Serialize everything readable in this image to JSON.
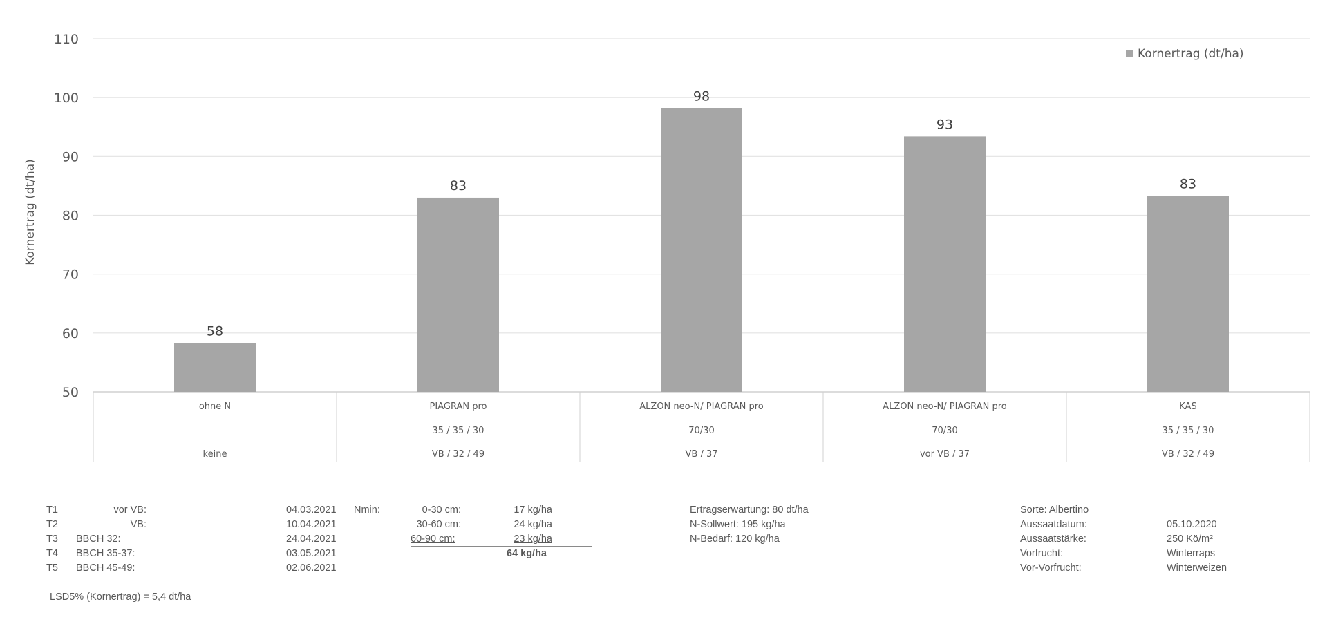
{
  "chart_data": {
    "type": "bar",
    "ylabel": "Kornertrag (dt/ha)",
    "ylim": [
      50,
      110
    ],
    "yticks": [
      50,
      60,
      70,
      80,
      90,
      100,
      110
    ],
    "grid": true,
    "legend": {
      "position": "top-right",
      "entries": [
        "Kornertrag (dt/ha)"
      ]
    },
    "series": [
      {
        "name": "Kornertrag (dt/ha)",
        "color": "#a6a6a6",
        "values": [
          58.3,
          83.0,
          98.2,
          93.4,
          83.3
        ],
        "labels": [
          "58",
          "83",
          "98",
          "93",
          "83"
        ]
      }
    ],
    "categories": [
      {
        "name": "ohne N",
        "split": "",
        "timing": "keine"
      },
      {
        "name": "PIAGRAN pro",
        "split": "35 / 35 / 30",
        "timing": "VB / 32 / 49"
      },
      {
        "name": "ALZON neo-N/ PIAGRAN pro",
        "split": "70/30",
        "timing": "VB / 37"
      },
      {
        "name": "ALZON neo-N/ PIAGRAN pro",
        "split": "70/30",
        "timing": "vor VB / 37"
      },
      {
        "name": "KAS",
        "split": "35 / 35 / 30",
        "timing": "VB / 32 / 49"
      }
    ]
  },
  "footer": {
    "timings": [
      {
        "id": "T1",
        "stage": "vor VB:",
        "date": "04.03.2021"
      },
      {
        "id": "T2",
        "stage": "VB:",
        "date": "10.04.2021"
      },
      {
        "id": "T3",
        "stage": "BBCH 32:",
        "date": "24.04.2021"
      },
      {
        "id": "T4",
        "stage": "BBCH 35-37:",
        "date": "03.05.2021"
      },
      {
        "id": "T5",
        "stage": "BBCH  45-49:",
        "date": "02.06.2021"
      }
    ],
    "nmin_label": "Nmin:",
    "nmin": [
      {
        "depth": "0-30 cm:",
        "value": "17 kg/ha"
      },
      {
        "depth": "30-60 cm:",
        "value": "24 kg/ha"
      },
      {
        "depth": "60-90 cm:",
        "value": "23 kg/ha"
      }
    ],
    "nmin_total": "64 kg/ha",
    "expectation": [
      "Ertragserwartung: 80 dt/ha",
      "N-Sollwert: 195 kg/ha",
      "N-Bedarf: 120 kg/ha"
    ],
    "crop": [
      {
        "label": "Sorte: Albertino",
        "value": ""
      },
      {
        "label": "Aussaatdatum:",
        "value": "05.10.2020"
      },
      {
        "label": "Aussaatstärke:",
        "value": "250 Kö/m²"
      },
      {
        "label": "Vorfrucht:",
        "value": "Winterraps"
      },
      {
        "label": "Vor-Vorfrucht:",
        "value": "Winterweizen"
      }
    ],
    "lsd": "LSD5% (Kornertrag) = 5,4 dt/ha"
  }
}
